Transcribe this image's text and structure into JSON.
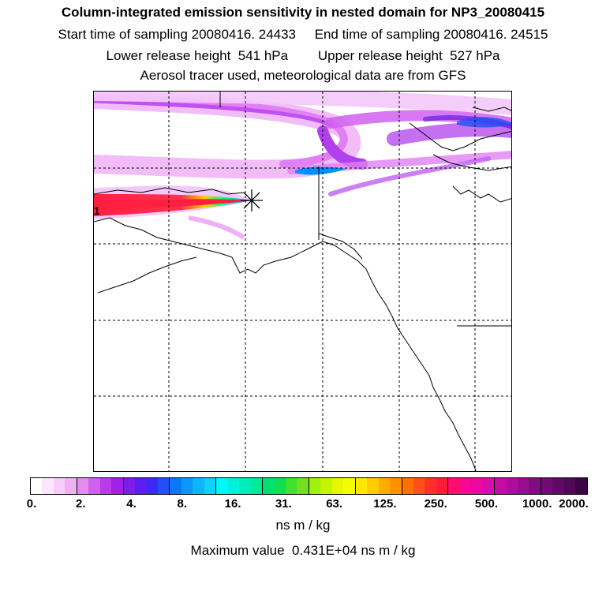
{
  "header": {
    "title": "Column-integrated emission sensitivity in nested domain for NP3_20080415",
    "line2": "Start time of sampling 20080416. 24433     End time of sampling 20080416. 24515",
    "line3": "Lower release height  541 hPa        Upper release height  527 hPa",
    "line4": "Aerosol tracer used, meteorological data are from GFS"
  },
  "map": {
    "release_label": "1",
    "plume_palette": [
      "#ffd0ff",
      "#e080ff",
      "#b040f0",
      "#6020e0",
      "#0090ff",
      "#00e0ff",
      "#00ff60",
      "#ffff00",
      "#ff8000",
      "#ff2040"
    ]
  },
  "colorbar": {
    "tick_labels": [
      "0.",
      "2.",
      "4.",
      "8.",
      "16.",
      "31.",
      "63.",
      "125.",
      "250.",
      "500.",
      "1000.",
      "2000."
    ],
    "segments": [
      "#ffffff",
      "#fce6fc",
      "#f8ccf8",
      "#f2b0f4",
      "#e38cef",
      "#d060ee",
      "#b83cec",
      "#a020e8",
      "#7a1ee8",
      "#5a1ef0",
      "#3a2af4",
      "#2050f8",
      "#0878f8",
      "#0a96fa",
      "#0cb6fb",
      "#10d0fc",
      "#00f8f8",
      "#00f0d8",
      "#00ecb8",
      "#00ea98",
      "#00e070",
      "#10e050",
      "#40e030",
      "#70e020",
      "#a0f010",
      "#c4f400",
      "#e6f800",
      "#f6fc00",
      "#ffe800",
      "#ffcc00",
      "#ffae00",
      "#ff9000",
      "#ff7000",
      "#ff5018",
      "#ff3028",
      "#ff1c3a",
      "#ff0c6c",
      "#f80890",
      "#e80aa0",
      "#d80ca8",
      "#c80aa4",
      "#b00c9c",
      "#980c90",
      "#800c80",
      "#700a74",
      "#600a68",
      "#500858",
      "#3c0644"
    ],
    "units": "ns m / kg"
  },
  "footer": {
    "max_value": "Maximum value  0.431E+04 ns m / kg"
  }
}
